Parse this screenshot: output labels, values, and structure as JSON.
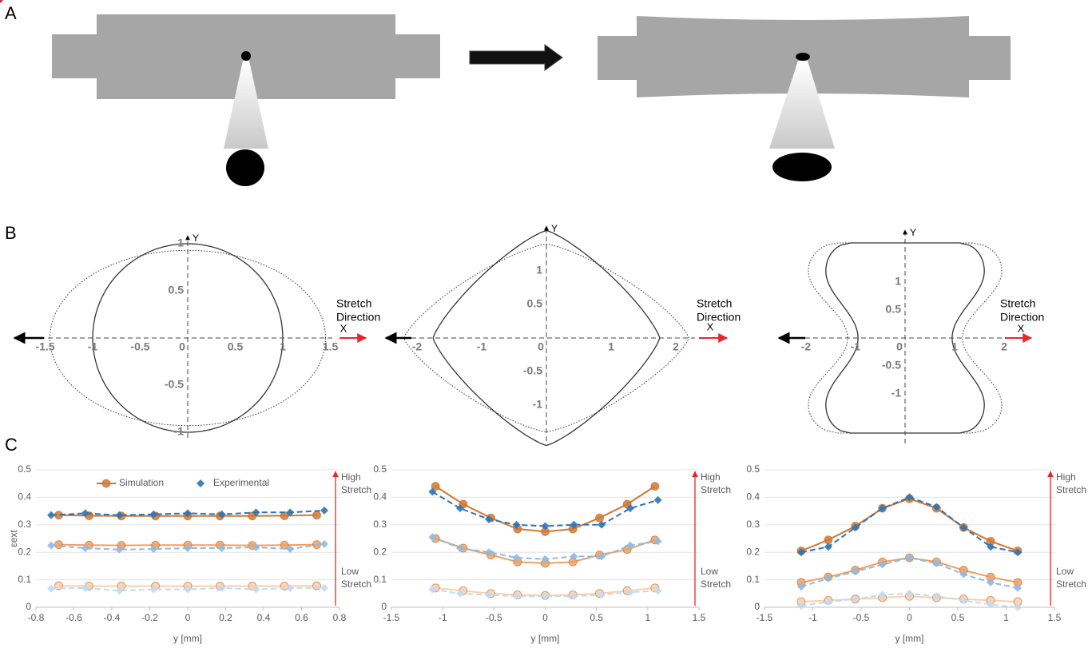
{
  "panel_labels": [
    "A",
    "B",
    "C"
  ],
  "panel_b": [
    {
      "xticks": [
        -1.5,
        -1,
        -0.5,
        0,
        0.5,
        1,
        1.5
      ],
      "yticks": [
        1,
        0.5,
        -0.5,
        -1
      ],
      "x_label": "X",
      "y_label": "Y",
      "annotation": [
        "Stretch",
        "Direction"
      ]
    },
    {
      "xticks": [
        -2,
        -1,
        0,
        1,
        2
      ],
      "yticks": [
        1,
        0.5,
        -0.5,
        -1
      ],
      "x_label": "X",
      "y_label": "Y",
      "annotation": [
        "Stretch",
        "Direction"
      ]
    },
    {
      "xticks": [
        -2,
        -1,
        0,
        1,
        2
      ],
      "yticks": [
        1,
        0.5,
        -0.5,
        -1
      ],
      "x_label": "X",
      "y_label": "Y",
      "annotation": [
        "Stretch",
        "Direction"
      ]
    }
  ],
  "chart_data": [
    {
      "type": "line",
      "y_label": "εext",
      "x_label": "y [mm]",
      "legend": [
        "Simulation",
        "Experimental"
      ],
      "annotations": {
        "high": [
          "High",
          "Stretch"
        ],
        "low": [
          "Low",
          "Stretch"
        ]
      },
      "xlim": [
        -0.8,
        0.8
      ],
      "xticks": [
        -0.8,
        -0.6,
        -0.4,
        -0.2,
        0,
        0.2,
        0.4,
        0.6,
        0.8
      ],
      "ylim": [
        0,
        0.5
      ],
      "yticks": [
        0,
        0.1,
        0.2,
        0.3,
        0.4,
        0.5
      ],
      "grid": true,
      "series": [
        {
          "color": "#d5772f",
          "style": "solid",
          "marker": "circle",
          "x": [
            -0.68,
            -0.52,
            -0.35,
            -0.17,
            0,
            0.17,
            0.34,
            0.51,
            0.68
          ],
          "values": [
            0.335,
            0.333,
            0.332,
            0.332,
            0.332,
            0.332,
            0.332,
            0.333,
            0.335
          ]
        },
        {
          "color": "#2e75b6",
          "style": "dashed",
          "marker": "diamond",
          "x": [
            -0.72,
            -0.54,
            -0.36,
            -0.18,
            0,
            0.18,
            0.36,
            0.54,
            0.72
          ],
          "values": [
            0.335,
            0.342,
            0.335,
            0.338,
            0.342,
            0.338,
            0.345,
            0.345,
            0.352
          ]
        },
        {
          "color": "#f0a064",
          "style": "solid",
          "marker": "circle",
          "x": [
            -0.68,
            -0.52,
            -0.35,
            -0.17,
            0,
            0.17,
            0.34,
            0.51,
            0.68
          ],
          "values": [
            0.228,
            0.226,
            0.225,
            0.226,
            0.226,
            0.226,
            0.225,
            0.226,
            0.228
          ]
        },
        {
          "color": "#8fbae3",
          "style": "dashed",
          "marker": "diamond",
          "x": [
            -0.72,
            -0.54,
            -0.36,
            -0.18,
            0,
            0.18,
            0.36,
            0.54,
            0.72
          ],
          "values": [
            0.225,
            0.215,
            0.21,
            0.212,
            0.215,
            0.215,
            0.218,
            0.212,
            0.23
          ]
        },
        {
          "color": "#f9cfae",
          "style": "solid",
          "marker": "circle",
          "x": [
            -0.68,
            -0.52,
            -0.35,
            -0.17,
            0,
            0.17,
            0.34,
            0.51,
            0.68
          ],
          "values": [
            0.078,
            0.077,
            0.077,
            0.077,
            0.077,
            0.077,
            0.077,
            0.077,
            0.078
          ]
        },
        {
          "color": "#c3daf1",
          "style": "dashed",
          "marker": "diamond",
          "x": [
            -0.72,
            -0.54,
            -0.36,
            -0.18,
            0,
            0.18,
            0.36,
            0.54,
            0.72
          ],
          "values": [
            0.068,
            0.07,
            0.06,
            0.065,
            0.065,
            0.07,
            0.065,
            0.07,
            0.07
          ]
        }
      ]
    },
    {
      "type": "line",
      "x_label": "y [mm]",
      "annotations": {
        "high": [
          "High",
          "Stretch"
        ],
        "low": [
          "Low",
          "Stretch"
        ]
      },
      "xlim": [
        -1.5,
        1.5
      ],
      "xticks": [
        -1.5,
        -1,
        -0.5,
        0,
        0.5,
        1,
        1.5
      ],
      "ylim": [
        0,
        0.5
      ],
      "yticks": [
        0,
        0.1,
        0.2,
        0.3,
        0.4,
        0.5
      ],
      "grid": true,
      "series": [
        {
          "color": "#d5772f",
          "style": "solid",
          "marker": "circle",
          "x": [
            -1.07,
            -0.8,
            -0.53,
            -0.27,
            0,
            0.27,
            0.53,
            0.8,
            1.07
          ],
          "values": [
            0.44,
            0.375,
            0.325,
            0.285,
            0.275,
            0.285,
            0.325,
            0.375,
            0.44
          ]
        },
        {
          "color": "#2e75b6",
          "style": "dashed",
          "marker": "diamond",
          "x": [
            -1.1,
            -0.83,
            -0.55,
            -0.28,
            0,
            0.28,
            0.55,
            0.83,
            1.1
          ],
          "values": [
            0.42,
            0.36,
            0.32,
            0.3,
            0.295,
            0.3,
            0.3,
            0.36,
            0.39
          ]
        },
        {
          "color": "#f0a064",
          "style": "solid",
          "marker": "circle",
          "x": [
            -1.07,
            -0.8,
            -0.53,
            -0.27,
            0,
            0.27,
            0.53,
            0.8,
            1.07
          ],
          "values": [
            0.25,
            0.215,
            0.19,
            0.165,
            0.16,
            0.165,
            0.19,
            0.21,
            0.245
          ]
        },
        {
          "color": "#8fbae3",
          "style": "dashed",
          "marker": "diamond",
          "x": [
            -1.1,
            -0.83,
            -0.55,
            -0.28,
            0,
            0.28,
            0.55,
            0.83,
            1.1
          ],
          "values": [
            0.255,
            0.215,
            0.2,
            0.18,
            0.175,
            0.185,
            0.185,
            0.225,
            0.24
          ]
        },
        {
          "color": "#f9cfae",
          "style": "solid",
          "marker": "circle",
          "x": [
            -1.07,
            -0.8,
            -0.53,
            -0.27,
            0,
            0.27,
            0.53,
            0.8,
            1.07
          ],
          "values": [
            0.07,
            0.06,
            0.05,
            0.045,
            0.043,
            0.045,
            0.05,
            0.06,
            0.07
          ]
        },
        {
          "color": "#c3daf1",
          "style": "dashed",
          "marker": "diamond",
          "x": [
            -1.1,
            -0.83,
            -0.55,
            -0.28,
            0,
            0.28,
            0.55,
            0.83,
            1.1
          ],
          "values": [
            0.065,
            0.05,
            0.045,
            0.04,
            0.04,
            0.04,
            0.045,
            0.055,
            0.06
          ]
        }
      ]
    },
    {
      "type": "line",
      "x_label": "y [mm]",
      "annotations": {
        "high": [
          "High",
          "Stretch"
        ],
        "low": [
          "Low",
          "Stretch"
        ]
      },
      "xlim": [
        -1.5,
        1.5
      ],
      "xticks": [
        -1.5,
        -1,
        -0.5,
        0,
        0.5,
        1,
        1.5
      ],
      "ylim": [
        0,
        0.5
      ],
      "yticks": [
        0,
        0.1,
        0.2,
        0.3,
        0.4,
        0.5
      ],
      "grid": true,
      "series": [
        {
          "color": "#d5772f",
          "style": "solid",
          "marker": "circle",
          "x": [
            -1.12,
            -0.84,
            -0.56,
            -0.28,
            0,
            0.28,
            0.56,
            0.84,
            1.12
          ],
          "values": [
            0.205,
            0.245,
            0.295,
            0.36,
            0.395,
            0.36,
            0.29,
            0.24,
            0.205
          ]
        },
        {
          "color": "#2e75b6",
          "style": "dashed",
          "marker": "diamond",
          "x": [
            -1.12,
            -0.84,
            -0.56,
            -0.28,
            0,
            0.28,
            0.56,
            0.84,
            1.12
          ],
          "values": [
            0.2,
            0.22,
            0.29,
            0.36,
            0.4,
            0.365,
            0.29,
            0.22,
            0.2
          ]
        },
        {
          "color": "#f0a064",
          "style": "solid",
          "marker": "circle",
          "x": [
            -1.12,
            -0.84,
            -0.56,
            -0.28,
            0,
            0.28,
            0.56,
            0.84,
            1.12
          ],
          "values": [
            0.09,
            0.11,
            0.135,
            0.165,
            0.18,
            0.165,
            0.135,
            0.11,
            0.09
          ]
        },
        {
          "color": "#8fbae3",
          "style": "dashed",
          "marker": "diamond",
          "x": [
            -1.12,
            -0.84,
            -0.56,
            -0.28,
            0,
            0.28,
            0.56,
            0.84,
            1.12
          ],
          "values": [
            0.075,
            0.105,
            0.13,
            0.155,
            0.18,
            0.16,
            0.12,
            0.09,
            0.07
          ]
        },
        {
          "color": "#f9cfae",
          "style": "solid",
          "marker": "circle",
          "x": [
            -1.12,
            -0.84,
            -0.56,
            -0.28,
            0,
            0.28,
            0.56,
            0.84,
            1.12
          ],
          "values": [
            0.02,
            0.025,
            0.03,
            0.035,
            0.04,
            0.035,
            0.03,
            0.025,
            0.02
          ]
        },
        {
          "color": "#c3daf1",
          "style": "dashed",
          "marker": "diamond",
          "x": [
            -1.12,
            -0.84,
            -0.56,
            -0.28,
            0,
            0.28,
            0.56,
            0.84,
            1.12
          ],
          "values": [
            0.005,
            0.02,
            0.03,
            0.045,
            0.05,
            0.04,
            0.025,
            0.01,
            0
          ]
        }
      ]
    }
  ]
}
